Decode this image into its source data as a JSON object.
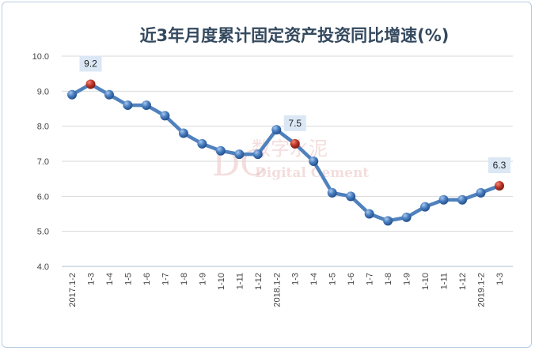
{
  "chart_data": {
    "type": "line",
    "title": "近3年月度累计固定资产投资同比增速(%)",
    "xlabel": "",
    "ylabel": "",
    "ylim": [
      4.0,
      10.0
    ],
    "yticks": [
      "4.0",
      "5.0",
      "6.0",
      "7.0",
      "8.0",
      "9.0",
      "10.0"
    ],
    "grid": true,
    "categories": [
      "2017.1-2",
      "1-3",
      "1-4",
      "1-5",
      "1-6",
      "1-7",
      "1-8",
      "1-9",
      "1-10",
      "1-11",
      "1-12",
      "2018.1-2",
      "1-3",
      "1-4",
      "1-5",
      "1-6",
      "1-7",
      "1-8",
      "1-9",
      "1-10",
      "1-11",
      "1-12",
      "2019.1-2",
      "1-3"
    ],
    "series": [
      {
        "name": "固定资产投资同比增速",
        "values": [
          8.9,
          9.2,
          8.9,
          8.6,
          8.6,
          8.3,
          7.8,
          7.5,
          7.3,
          7.2,
          7.2,
          7.9,
          7.5,
          7.0,
          6.1,
          6.0,
          5.5,
          5.3,
          5.4,
          5.7,
          5.9,
          5.9,
          6.1,
          6.3
        ]
      }
    ],
    "highlighted_points": [
      {
        "index": 1,
        "label": "9.2"
      },
      {
        "index": 12,
        "label": "7.5"
      },
      {
        "index": 23,
        "label": "6.3"
      }
    ],
    "colors": {
      "line": "#4f81bd",
      "marker": "#4a7fc0",
      "highlight": "#c0392b",
      "label_bg": "#dbe7f4",
      "grid": "#d9d9d9"
    }
  },
  "watermark": {
    "cn": "数字水泥",
    "en": "Digital Cement",
    "logo": "DC"
  }
}
